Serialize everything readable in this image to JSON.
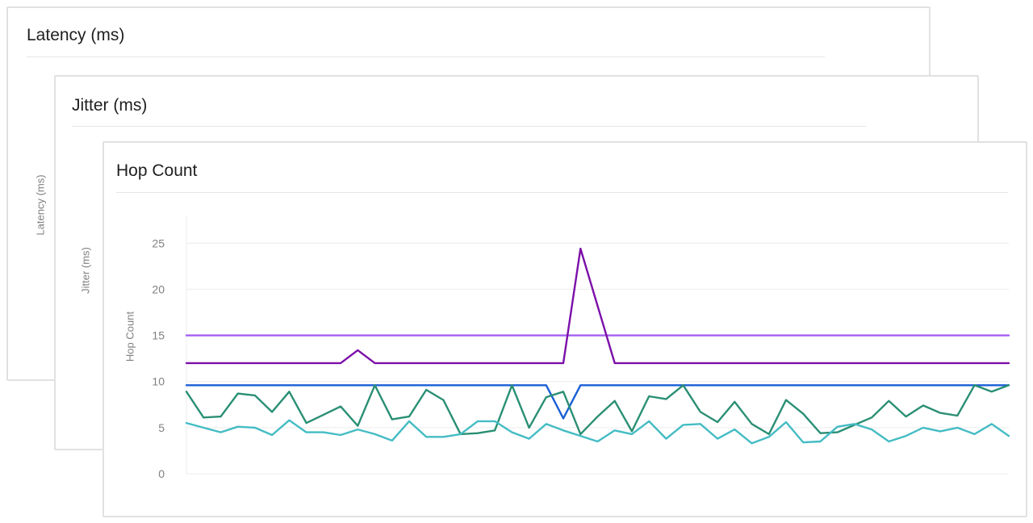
{
  "cards": {
    "latency": {
      "title": "Latency (ms)",
      "ylabel": "Latency (ms)"
    },
    "jitter": {
      "title": "Jitter (ms)",
      "ylabel": "Jitter (ms)"
    },
    "hop": {
      "title": "Hop Count",
      "ylabel": "Hop Count"
    }
  },
  "colors": {
    "light_purple": "#a35ff0",
    "dark_purple": "#7b0fa8",
    "blue": "#1a5fd6",
    "green": "#2a8f74",
    "teal": "#44bcc4",
    "grid": "#ececec",
    "tick_text": "#808080"
  },
  "chart_data": {
    "type": "line",
    "title": "Hop Count",
    "xlabel": "",
    "ylabel": "Hop Count",
    "ylim": [
      0,
      28
    ],
    "yticks": [
      0,
      5,
      10,
      15,
      20,
      25
    ],
    "grid": true,
    "x": [
      0,
      1,
      2,
      3,
      4,
      5,
      6,
      7,
      8,
      9,
      10,
      11,
      12,
      13,
      14,
      15,
      16,
      17,
      18,
      19,
      20,
      21,
      22,
      23,
      24,
      25,
      26,
      27,
      28,
      29,
      30,
      31,
      32,
      33,
      34,
      35,
      36,
      37,
      38,
      39,
      40,
      41,
      42,
      43,
      44,
      45,
      46,
      47,
      48
    ],
    "series": [
      {
        "color": "#a35ff0",
        "values": [
          15,
          15,
          15,
          15,
          15,
          15,
          15,
          15,
          15,
          15,
          15,
          15,
          15,
          15,
          15,
          15,
          15,
          15,
          15,
          15,
          15,
          15,
          15,
          15,
          15,
          15,
          15,
          15,
          15,
          15,
          15,
          15,
          15,
          15,
          15,
          15,
          15,
          15,
          15,
          15,
          15,
          15,
          15,
          15,
          15,
          15,
          15,
          15,
          15
        ]
      },
      {
        "color": "#7b0fa8",
        "values": [
          12,
          12,
          12,
          12,
          12,
          12,
          12,
          12,
          12,
          12,
          13.4,
          12,
          12,
          12,
          12,
          12,
          12,
          12,
          12,
          12,
          12,
          12,
          12,
          24.4,
          18.2,
          12,
          12,
          12,
          12,
          12,
          12,
          12,
          12,
          12,
          12,
          12,
          12,
          12,
          12,
          12,
          12,
          12,
          12,
          12,
          12,
          12,
          12,
          12,
          12
        ]
      },
      {
        "color": "#1a5fd6",
        "values": [
          9.6,
          9.6,
          9.6,
          9.6,
          9.6,
          9.6,
          9.6,
          9.6,
          9.6,
          9.6,
          9.6,
          9.6,
          9.6,
          9.6,
          9.6,
          9.6,
          9.6,
          9.6,
          9.6,
          9.6,
          9.6,
          9.6,
          6,
          9.6,
          9.6,
          9.6,
          9.6,
          9.6,
          9.6,
          9.6,
          9.6,
          9.6,
          9.6,
          9.6,
          9.6,
          9.6,
          9.6,
          9.6,
          9.6,
          9.6,
          9.6,
          9.6,
          9.6,
          9.6,
          9.6,
          9.6,
          9.6,
          9.6,
          9.6
        ]
      },
      {
        "color": "#2a8f74",
        "values": [
          8.9,
          6.1,
          6.2,
          8.7,
          8.5,
          6.7,
          8.9,
          5.5,
          6.4,
          7.3,
          5.2,
          9.6,
          5.9,
          6.2,
          9.1,
          8.0,
          4.3,
          4.4,
          4.7,
          9.6,
          5.0,
          8.3,
          8.9,
          4.3,
          6.2,
          7.9,
          4.6,
          8.4,
          8.1,
          9.6,
          6.7,
          5.6,
          7.8,
          5.4,
          4.3,
          8.0,
          6.5,
          4.4,
          4.5,
          5.3,
          6.1,
          7.9,
          6.2,
          7.4,
          6.6,
          6.3,
          9.6,
          8.9,
          9.6
        ]
      },
      {
        "color": "#44bcc4",
        "values": [
          5.5,
          5.0,
          4.5,
          5.1,
          5.0,
          4.2,
          5.8,
          4.5,
          4.5,
          4.2,
          4.8,
          4.3,
          3.6,
          5.7,
          4.0,
          4.0,
          4.3,
          5.7,
          5.7,
          4.5,
          3.8,
          5.4,
          4.7,
          4.1,
          3.5,
          4.7,
          4.3,
          5.7,
          3.8,
          5.3,
          5.4,
          3.8,
          4.8,
          3.3,
          4.0,
          5.6,
          3.4,
          3.5,
          5.1,
          5.4,
          4.8,
          3.5,
          4.1,
          5.0,
          4.6,
          5.0,
          4.3,
          5.4,
          4.1
        ]
      }
    ]
  }
}
